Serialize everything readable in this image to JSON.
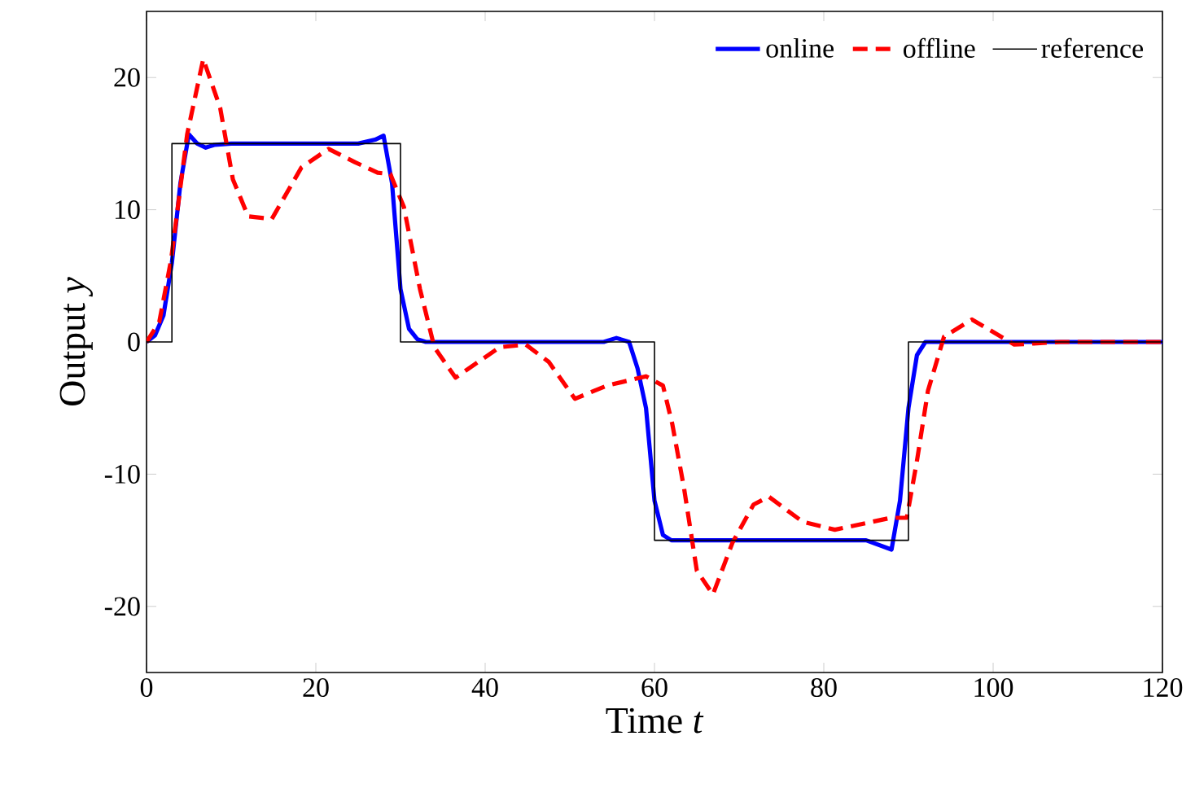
{
  "chart_data": {
    "type": "line",
    "xlabel": "Time *t*",
    "ylabel": "Output *y*",
    "xlim": [
      0,
      120
    ],
    "ylim": [
      -25,
      25
    ],
    "xticks": [
      0,
      20,
      40,
      60,
      80,
      100,
      120
    ],
    "yticks": [
      -20,
      -10,
      0,
      10,
      20
    ],
    "grid": false,
    "legend": "top right",
    "series": [
      {
        "name": "online",
        "color": "#0000ff",
        "line_style": "solid",
        "x": [
          0,
          1,
          2,
          3,
          4,
          5,
          6,
          7,
          8,
          10,
          20,
          25,
          27,
          28,
          29,
          30,
          31,
          32,
          33,
          40,
          54,
          55.5,
          57,
          58,
          59,
          60,
          61,
          62,
          85,
          88,
          89,
          90,
          91,
          92,
          93,
          120
        ],
        "values": [
          0,
          0.5,
          2,
          6,
          12,
          15.7,
          15,
          14.7,
          14.9,
          15,
          15,
          15,
          15.3,
          15.6,
          12,
          4,
          1,
          0.2,
          0,
          0,
          0,
          0.3,
          0,
          -2,
          -5,
          -12,
          -14.6,
          -15,
          -15,
          -15.7,
          -12,
          -5,
          -1,
          0,
          0,
          0
        ]
      },
      {
        "name": "offline",
        "color": "#ff0000",
        "line_style": "dashed",
        "x": [
          0,
          1.5,
          2.9,
          4.8,
          6.7,
          8.7,
          10.2,
          12,
          14.8,
          18.3,
          21.5,
          24.6,
          27.3,
          28.8,
          30.4,
          32.3,
          34,
          36.5,
          41.7,
          44.8,
          47.5,
          50.6,
          54.4,
          59,
          61,
          62.1,
          63.5,
          65,
          66.9,
          69.2,
          71.7,
          73.5,
          77.5,
          81.3,
          87.9,
          89.8,
          91,
          92.3,
          94.2,
          97.5,
          102.5,
          108,
          120
        ],
        "values": [
          0,
          1.5,
          6.2,
          15.7,
          21.4,
          17.7,
          12.3,
          9.5,
          9.3,
          13.2,
          14.6,
          13.6,
          12.8,
          12.7,
          10.2,
          4,
          -0.4,
          -2.7,
          -0.4,
          -0.2,
          -1.5,
          -4.3,
          -3.3,
          -2.6,
          -3.3,
          -6.2,
          -11.1,
          -17.3,
          -19.1,
          -15.2,
          -12.3,
          -11.7,
          -13.6,
          -14.2,
          -13.3,
          -13.3,
          -9,
          -3.7,
          0.4,
          1.7,
          -0.2,
          0,
          0
        ]
      },
      {
        "name": "reference",
        "color": "#000000",
        "type": "step",
        "line_style": "solid",
        "x": [
          0,
          3,
          30,
          60,
          90,
          120
        ],
        "values": [
          0,
          15,
          0,
          -15,
          0,
          0
        ]
      }
    ]
  }
}
